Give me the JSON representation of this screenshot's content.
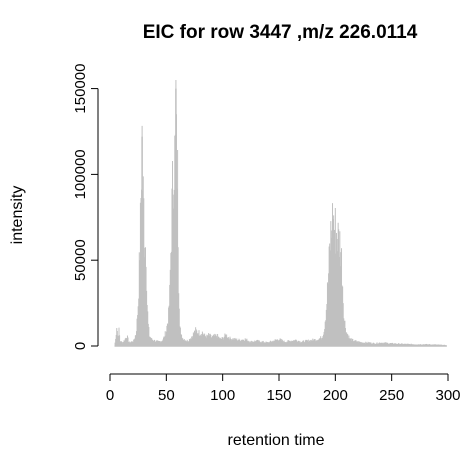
{
  "chart_data": {
    "type": "bar",
    "title": "EIC for row 3447 ,m/z 226.0114",
    "xlabel": "retention time",
    "ylabel": "intensity",
    "xlim": [
      0,
      300
    ],
    "ylim": [
      0,
      155000
    ],
    "x_ticks": [
      0,
      50,
      100,
      150,
      200,
      250,
      300
    ],
    "y_ticks": [
      0,
      50000,
      100000,
      150000
    ],
    "grid": false,
    "legend": "none",
    "colors": {
      "bars": "#c0c0c0",
      "axis": "#000000",
      "text": "#000000"
    },
    "bar_step": 0.5,
    "profile": [
      [
        4,
        0
      ],
      [
        5,
        4000
      ],
      [
        6,
        12000
      ],
      [
        7,
        6000
      ],
      [
        8,
        9000
      ],
      [
        9,
        3000
      ],
      [
        11,
        2000
      ],
      [
        13,
        3500
      ],
      [
        15,
        6000
      ],
      [
        17,
        2000
      ],
      [
        19,
        2500
      ],
      [
        21,
        3000
      ],
      [
        23,
        7000
      ],
      [
        24,
        14000
      ],
      [
        25,
        25000
      ],
      [
        26,
        45000
      ],
      [
        27,
        70000
      ],
      [
        28,
        105000
      ],
      [
        28.5,
        122000
      ],
      [
        29,
        95000
      ],
      [
        30,
        80000
      ],
      [
        31,
        60000
      ],
      [
        32,
        58000
      ],
      [
        33,
        25000
      ],
      [
        34,
        12000
      ],
      [
        35,
        6000
      ],
      [
        37,
        4000
      ],
      [
        40,
        3000
      ],
      [
        43,
        2500
      ],
      [
        46,
        3000
      ],
      [
        48,
        5000
      ],
      [
        50,
        9000
      ],
      [
        52,
        18000
      ],
      [
        53,
        30000
      ],
      [
        54,
        55000
      ],
      [
        55,
        80000
      ],
      [
        56,
        100000
      ],
      [
        57,
        110000
      ],
      [
        58,
        112000
      ],
      [
        58.5,
        150000
      ],
      [
        59,
        114000
      ],
      [
        60,
        98000
      ],
      [
        61,
        40000
      ],
      [
        62,
        15000
      ],
      [
        63,
        6000
      ],
      [
        64,
        5000
      ],
      [
        66,
        4000
      ],
      [
        68,
        3000
      ],
      [
        70,
        3500
      ],
      [
        72,
        5000
      ],
      [
        74,
        7000
      ],
      [
        76,
        9000
      ],
      [
        78,
        8000
      ],
      [
        80,
        7500
      ],
      [
        82,
        8000
      ],
      [
        84,
        6000
      ],
      [
        86,
        5500
      ],
      [
        88,
        6500
      ],
      [
        90,
        5000
      ],
      [
        92,
        5500
      ],
      [
        95,
        6000
      ],
      [
        98,
        4000
      ],
      [
        100,
        4500
      ],
      [
        103,
        6500
      ],
      [
        106,
        4500
      ],
      [
        110,
        4000
      ],
      [
        115,
        3500
      ],
      [
        120,
        4000
      ],
      [
        125,
        2500
      ],
      [
        130,
        3000
      ],
      [
        135,
        2500
      ],
      [
        140,
        2000
      ],
      [
        145,
        3000
      ],
      [
        150,
        4000
      ],
      [
        155,
        2500
      ],
      [
        160,
        3000
      ],
      [
        165,
        3500
      ],
      [
        170,
        2500
      ],
      [
        175,
        3000
      ],
      [
        180,
        3500
      ],
      [
        185,
        4000
      ],
      [
        188,
        5000
      ],
      [
        190,
        9000
      ],
      [
        192,
        22000
      ],
      [
        194,
        42000
      ],
      [
        195,
        55000
      ],
      [
        196,
        65000
      ],
      [
        197,
        72000
      ],
      [
        198,
        74000
      ],
      [
        199,
        70000
      ],
      [
        200,
        68000
      ],
      [
        201,
        66000
      ],
      [
        202,
        64000
      ],
      [
        203,
        62000
      ],
      [
        204,
        60000
      ],
      [
        205,
        56000
      ],
      [
        206,
        45000
      ],
      [
        207,
        28000
      ],
      [
        208,
        15000
      ],
      [
        210,
        8000
      ],
      [
        213,
        4000
      ],
      [
        217,
        3000
      ],
      [
        220,
        2500
      ],
      [
        225,
        2000
      ],
      [
        230,
        2000
      ],
      [
        235,
        1500
      ],
      [
        240,
        2000
      ],
      [
        250,
        1500
      ],
      [
        260,
        1200
      ],
      [
        270,
        1000
      ],
      [
        280,
        1000
      ],
      [
        290,
        800
      ],
      [
        298,
        500
      ],
      [
        299,
        0
      ]
    ]
  }
}
